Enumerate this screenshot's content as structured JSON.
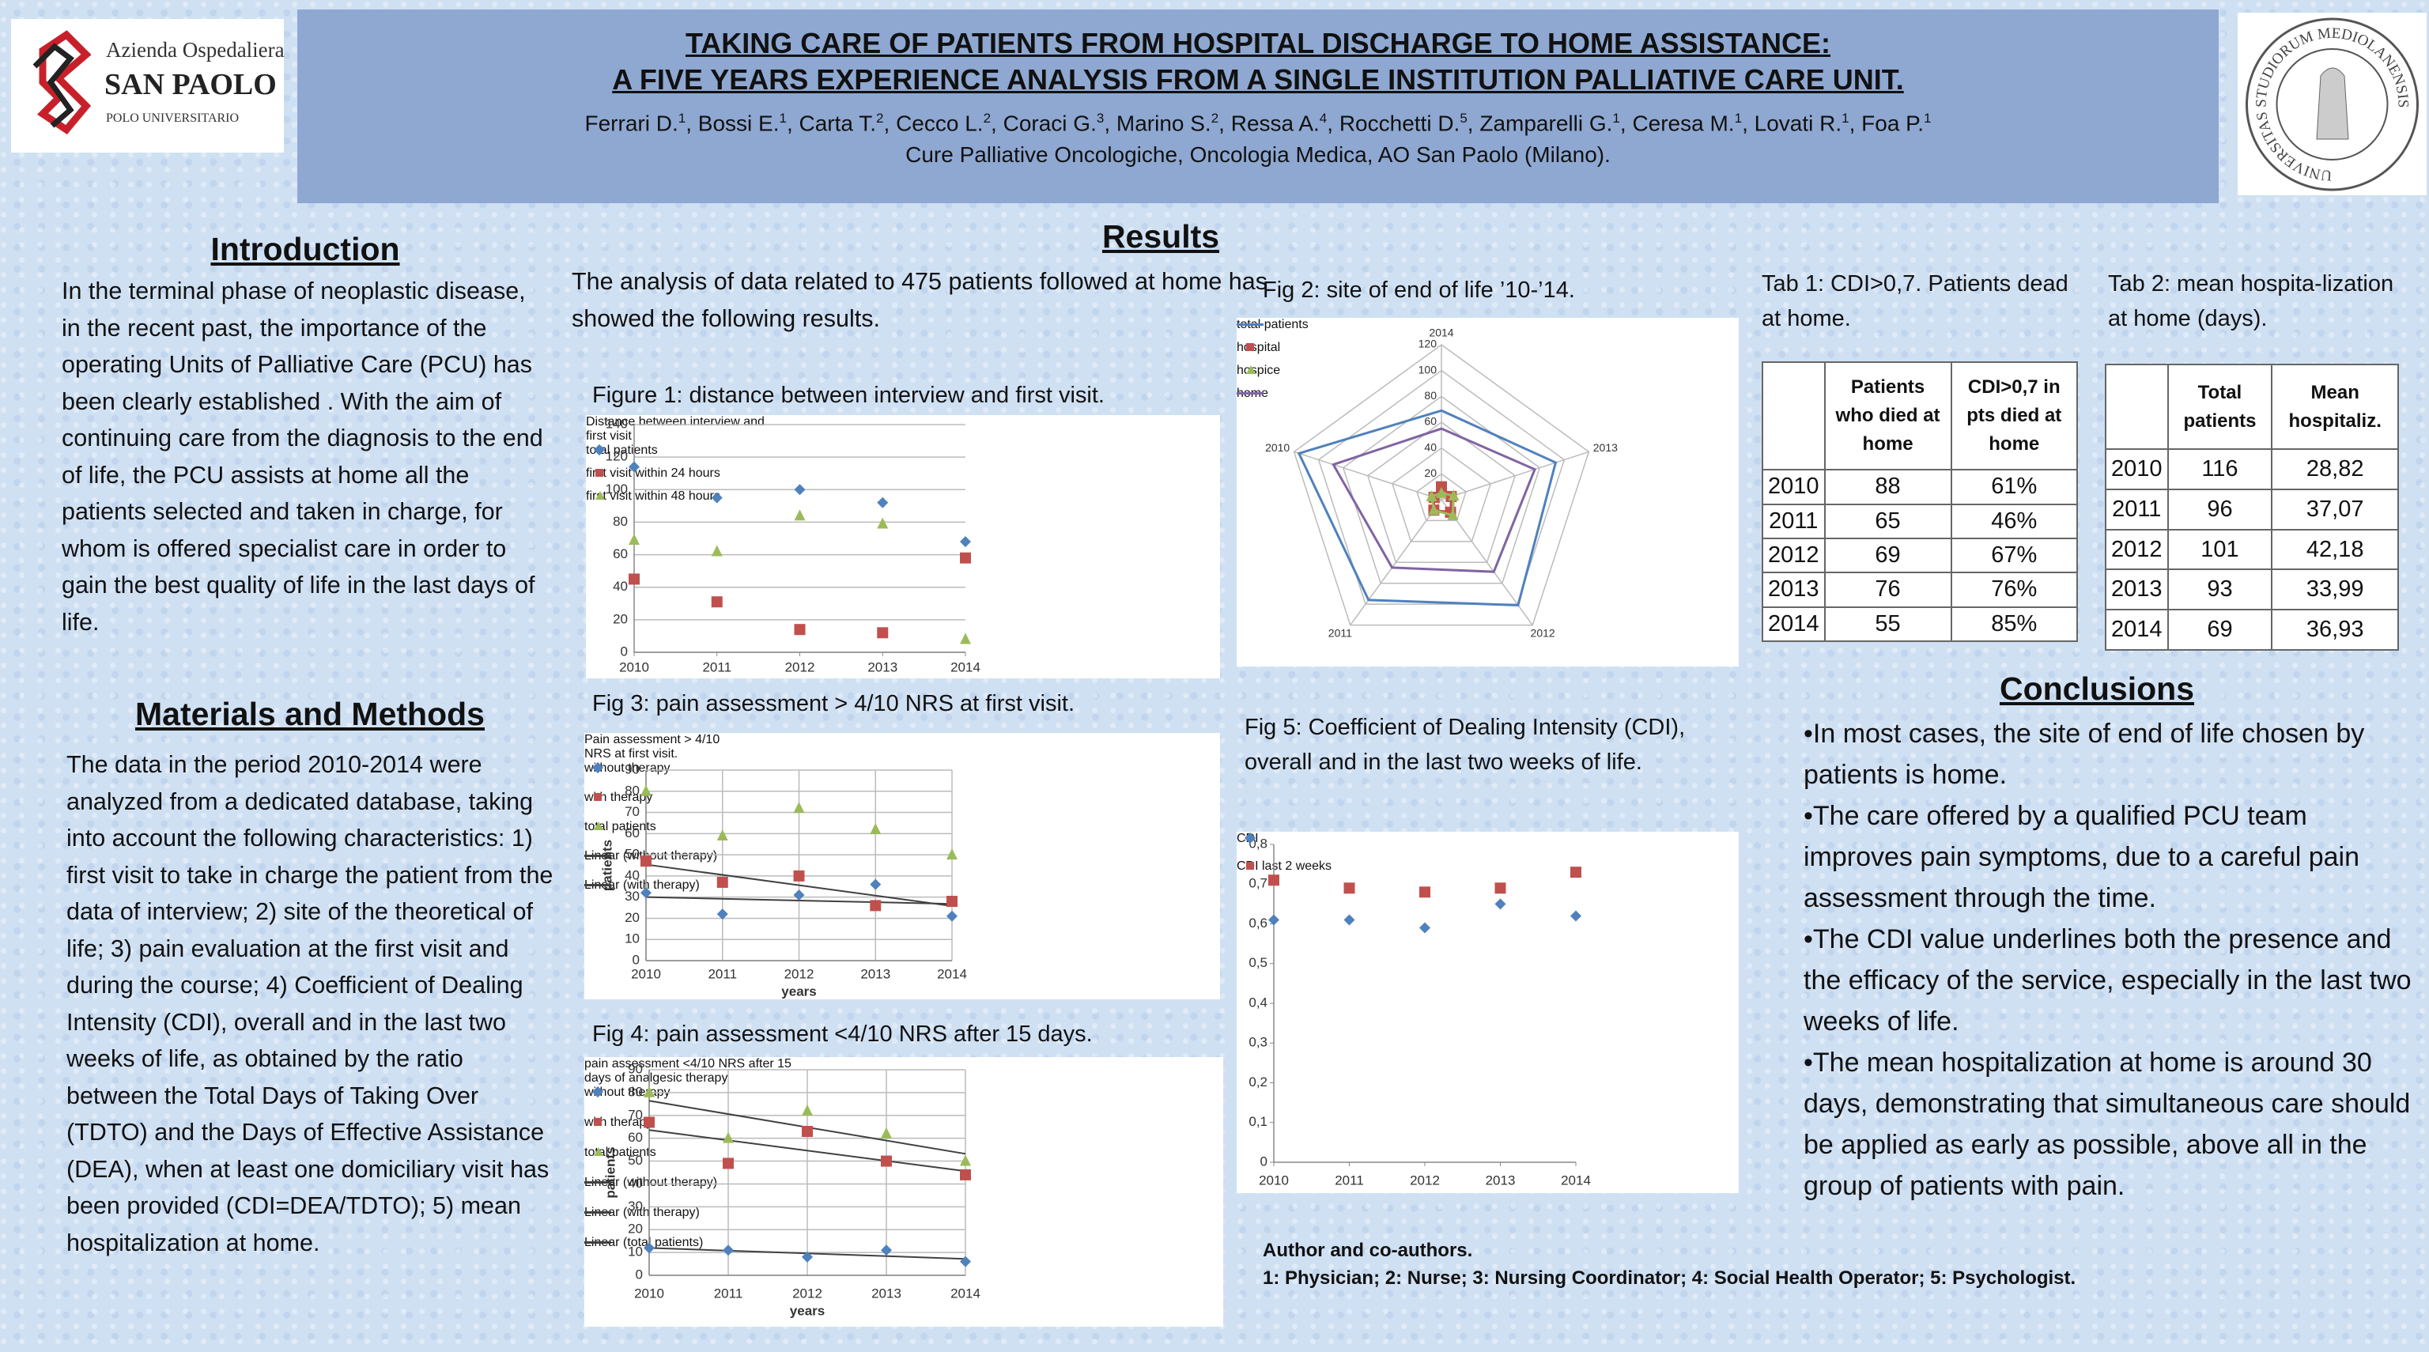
{
  "header": {
    "title": [
      "TAKING CARE OF PATIENTS FROM HOSPITAL DISCHARGE TO HOME ASSISTANCE:",
      "A FIVE YEARS EXPERIENCE ANALYSIS FROM A SINGLE INSTITUTION PALLIATIVE CARE UNIT."
    ],
    "authors": [
      {
        "name": "Ferrari D.",
        "sup": "1"
      },
      {
        "name": "Bossi E.",
        "sup": "1"
      },
      {
        "name": "Carta T.",
        "sup": "2"
      },
      {
        "name": "Cecco L.",
        "sup": "2"
      },
      {
        "name": "Coraci G.",
        "sup": "3"
      },
      {
        "name": "Marino S.",
        "sup": "2"
      },
      {
        "name": "Ressa A.",
        "sup": "4"
      },
      {
        "name": "Rocchetti D.",
        "sup": "5"
      },
      {
        "name": "Zamparelli G.",
        "sup": "1"
      },
      {
        "name": "Ceresa M.",
        "sup": "1"
      },
      {
        "name": "Lovati R.",
        "sup": "1"
      },
      {
        "name": "Foa P.",
        "sup": "1"
      }
    ],
    "authors_separator": ", ",
    "affiliation": "Cure Palliative Oncologiche, Oncologia Medica, AO San Paolo (Milano).",
    "left_logo": [
      "Azienda Ospedaliera",
      "SAN PAOLO",
      "POLO UNIVERSITARIO"
    ],
    "right_logo": "UNIVERSITAS STUDIORUM MEDIOLANENSIS"
  },
  "introduction": {
    "heading": "Introduction",
    "text": "In the terminal phase of neoplastic disease, in the recent past, the importance of the operating Units of Palliative Care (PCU) has been clearly established . With the aim of continuing  care from the diagnosis to the end of life, the PCU assists at home all the patients selected  and taken in charge, for whom is offered specialist care in order to gain the best quality of life in the last days of life."
  },
  "methods": {
    "heading": "Materials and Methods",
    "text": "The data in the period 2010-2014 were analyzed from a dedicated database, taking into account the following characteristics: 1) first visit to take in charge the patient from the data of interview; 2) site of the theoretical of life; 3) pain evaluation at the first visit and during the course;    4) Coefficient of Dealing Intensity (CDI), overall and in the last two weeks of life, as obtained by the ratio between the Total Days of Taking Over (TDTO) and the Days of Effective Assistance (DEA), when at least one domiciliary visit has been provided (CDI=DEA/TDTO); 5) mean hospitalization at home."
  },
  "results": {
    "heading": "Results",
    "text": "The analysis of data related to 475 patients followed at home has showed the following results."
  },
  "fig1": {
    "caption": "Figure 1: distance between interview and first visit.",
    "chart_data": {
      "type": "scatter",
      "legend_title": "Distance between interview and first visit",
      "x": [
        2010,
        2011,
        2012,
        2013,
        2014
      ],
      "xlim": [
        2010,
        2014
      ],
      "xticks": [
        2010,
        2011,
        2012,
        2013,
        2014
      ],
      "ylim": [
        0,
        140
      ],
      "yticks": [
        0,
        20,
        40,
        60,
        80,
        100,
        120,
        140
      ],
      "grid": "y",
      "series": [
        {
          "name": "total patients",
          "color": "#4f81bd",
          "marker": "diamond",
          "values": [
            114,
            95,
            100,
            92,
            68
          ]
        },
        {
          "name": "first visit within 24 hours",
          "color": "#c0504d",
          "marker": "square",
          "values": [
            45,
            31,
            14,
            12,
            58
          ]
        },
        {
          "name": "first visit within 48 hours",
          "color": "#9bbb59",
          "marker": "triangle",
          "values": [
            69,
            62,
            84,
            79,
            8
          ]
        }
      ]
    }
  },
  "fig2": {
    "caption": "Fig 2: site of end of life ’10-’14.",
    "chart_data": {
      "type": "radar",
      "axes": [
        "2014",
        "2013",
        "2012",
        "2011",
        "2010"
      ],
      "rlim": [
        0,
        120
      ],
      "rticks": [
        0,
        20,
        40,
        60,
        80,
        100,
        120
      ],
      "series": [
        {
          "name": "total patients",
          "color": "#4f81bd",
          "values": [
            69,
            93,
            101,
            96,
            116
          ]
        },
        {
          "name": "hospital",
          "color": "#c0504d",
          "marker": "square",
          "values": [
            10,
            8,
            12,
            10,
            6
          ]
        },
        {
          "name": "hospice",
          "color": "#9bbb59",
          "marker": "triangle",
          "values": [
            5,
            10,
            15,
            10,
            8
          ]
        },
        {
          "name": "home",
          "color": "#8064a2",
          "values": [
            55,
            76,
            69,
            65,
            88
          ]
        }
      ]
    }
  },
  "fig3": {
    "caption": "Fig 3: pain assessment > 4/10 NRS at first visit.",
    "chart_data": {
      "type": "scatter",
      "legend_title": "Pain assessment > 4/10 NRS at first visit.",
      "xlabel": "years",
      "ylabel": "patients",
      "x": [
        2010,
        2011,
        2012,
        2013,
        2014
      ],
      "xlim": [
        2010,
        2014
      ],
      "xticks": [
        2010,
        2011,
        2012,
        2013,
        2014
      ],
      "ylim": [
        0,
        90
      ],
      "yticks": [
        0,
        10,
        20,
        30,
        40,
        50,
        60,
        70,
        80,
        90
      ],
      "grid": "both",
      "series": [
        {
          "name": "without therapy",
          "color": "#4f81bd",
          "marker": "diamond",
          "values": [
            32,
            22,
            31,
            36,
            21
          ],
          "trendline": "Linear   (without therapy)"
        },
        {
          "name": "with therapy",
          "color": "#c0504d",
          "marker": "square",
          "values": [
            47,
            37,
            40,
            26,
            28
          ],
          "trendline": "Linear   (with therapy)"
        },
        {
          "name": "total patients",
          "color": "#9bbb59",
          "marker": "triangle",
          "values": [
            80,
            59,
            72,
            62,
            50
          ]
        }
      ]
    }
  },
  "fig4": {
    "caption": "Fig 4: pain assessment <4/10 NRS after 15 days.",
    "chart_data": {
      "type": "scatter",
      "legend_title": "pain assessment <4/10 NRS after 15 days of analgesic therapy",
      "xlabel": "years",
      "ylabel": "patients",
      "x": [
        2010,
        2011,
        2012,
        2013,
        2014
      ],
      "xlim": [
        2010,
        2014
      ],
      "xticks": [
        2010,
        2011,
        2012,
        2013,
        2014
      ],
      "ylim": [
        0,
        90
      ],
      "yticks": [
        0,
        10,
        20,
        30,
        40,
        50,
        60,
        70,
        80,
        90
      ],
      "grid": "both",
      "series": [
        {
          "name": "without therapy",
          "color": "#4f81bd",
          "marker": "diamond",
          "values": [
            12,
            11,
            8,
            11,
            6
          ],
          "trendline": "Linear   (without therapy)"
        },
        {
          "name": "with therapy",
          "color": "#c0504d",
          "marker": "square",
          "values": [
            67,
            49,
            63,
            50,
            44
          ],
          "trendline": "Linear   (with therapy)"
        },
        {
          "name": "total patients",
          "color": "#9bbb59",
          "marker": "triangle",
          "values": [
            80,
            60,
            72,
            62,
            50
          ],
          "trendline": "Linear   (total patients)"
        }
      ]
    }
  },
  "fig5": {
    "caption": "Fig 5: Coefficient of Dealing Intensity (CDI), overall and in the last two weeks of life.",
    "chart_data": {
      "type": "scatter",
      "x": [
        2010,
        2011,
        2012,
        2013,
        2014
      ],
      "xlim": [
        2010,
        2014
      ],
      "xticks": [
        2010,
        2011,
        2012,
        2013,
        2014
      ],
      "ylim": [
        0,
        0.8
      ],
      "yticks": [
        0,
        {
          "value": 0.1,
          "label": "0,1"
        },
        {
          "value": 0.2,
          "label": "0,2"
        },
        {
          "value": 0.3,
          "label": "0,3"
        },
        {
          "value": 0.4,
          "label": "0,4"
        },
        {
          "value": 0.5,
          "label": "0,5"
        },
        {
          "value": 0.6,
          "label": "0,6"
        },
        {
          "value": 0.7,
          "label": "0,7"
        },
        {
          "value": 0.8,
          "label": "0,8"
        }
      ],
      "grid": "none",
      "series": [
        {
          "name": "CDI",
          "color": "#4f81bd",
          "marker": "diamond",
          "values": [
            0.61,
            0.61,
            0.59,
            0.65,
            0.62
          ]
        },
        {
          "name": "CDI last 2 weeks",
          "color": "#c0504d",
          "marker": "square",
          "values": [
            0.71,
            0.69,
            0.68,
            0.69,
            0.73
          ]
        }
      ]
    }
  },
  "tab1": {
    "caption": "Tab 1: CDI>0,7. Patients dead at home.",
    "columns": [
      "Patients who died at home",
      "CDI>0,7 in pts died at home"
    ],
    "rows": [
      [
        "2010",
        "88",
        "61%"
      ],
      [
        "2011",
        "65",
        "46%"
      ],
      [
        "2012",
        "69",
        "67%"
      ],
      [
        "2013",
        "76",
        "76%"
      ],
      [
        "2014",
        "55",
        "85%"
      ]
    ]
  },
  "tab2": {
    "caption": "Tab 2: mean hospita-lization at home (days).",
    "columns": [
      "Total patients",
      "Mean hospitaliz."
    ],
    "rows": [
      [
        "2010",
        "116",
        "28,82"
      ],
      [
        "2011",
        "96",
        "37,07"
      ],
      [
        "2012",
        "101",
        "42,18"
      ],
      [
        "2013",
        "93",
        "33,99"
      ],
      [
        "2014",
        "69",
        "36,93"
      ]
    ]
  },
  "conclusions": {
    "heading": "Conclusions",
    "items": [
      "•In most cases, the site of end of life chosen by patients is home.",
      "•The care offered by a qualified PCU team improves pain symptoms,  due to a careful pain assessment through  the time.",
      "•The CDI value underlines  both the presence and the efficacy of the service, especially in the last two weeks of life.",
      "•The mean hospitalization at home  is around 30 days, demonstrating that simultaneous care should be applied as early as possible, above all in the group of patients with pain."
    ]
  },
  "authors_note": {
    "heading": "Author and co-authors.",
    "text": "1: Physician; 2: Nurse; 3: Nursing Coordinator; 4: Social Health Operator; 5: Psychologist."
  }
}
